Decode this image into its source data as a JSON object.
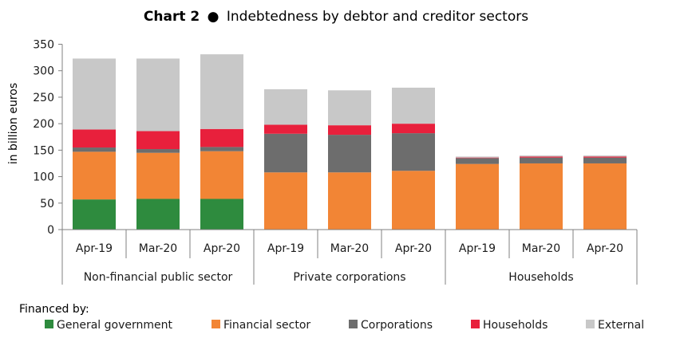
{
  "title_label": "Chart 2",
  "title_bullet": "●",
  "title_text": "Indebtedness by debtor and creditor sectors",
  "chart_data": {
    "type": "bar",
    "stacked": true,
    "ylabel": "in billion euros",
    "ylim": [
      0,
      350
    ],
    "yticks": [
      0,
      50,
      100,
      150,
      200,
      250,
      300,
      350
    ],
    "grid": false,
    "groups": [
      "Non-financial public sector",
      "Private corporations",
      "Households"
    ],
    "categories": [
      "Apr-19",
      "Mar-20",
      "Apr-20",
      "Apr-19",
      "Mar-20",
      "Apr-20",
      "Apr-19",
      "Mar-20",
      "Apr-20"
    ],
    "legend_title": "Financed by:",
    "legend_position": "bottom",
    "series": [
      {
        "name": "General government",
        "color": "#2e8b3e",
        "values": [
          57,
          58,
          58,
          0,
          0,
          0,
          0,
          0,
          0
        ]
      },
      {
        "name": "Financial sector",
        "color": "#f28535",
        "values": [
          90,
          87,
          90,
          108,
          108,
          111,
          124,
          125,
          125
        ]
      },
      {
        "name": "Corporations",
        "color": "#6d6d6d",
        "values": [
          8,
          7,
          8,
          73,
          71,
          71,
          11,
          11,
          11
        ]
      },
      {
        "name": "Households",
        "color": "#e8203c",
        "values": [
          34,
          34,
          34,
          17,
          18,
          18,
          1,
          2,
          2
        ]
      },
      {
        "name": "External",
        "color": "#c8c8c8",
        "values": [
          134,
          137,
          141,
          67,
          66,
          68,
          2,
          2,
          2
        ]
      }
    ]
  }
}
